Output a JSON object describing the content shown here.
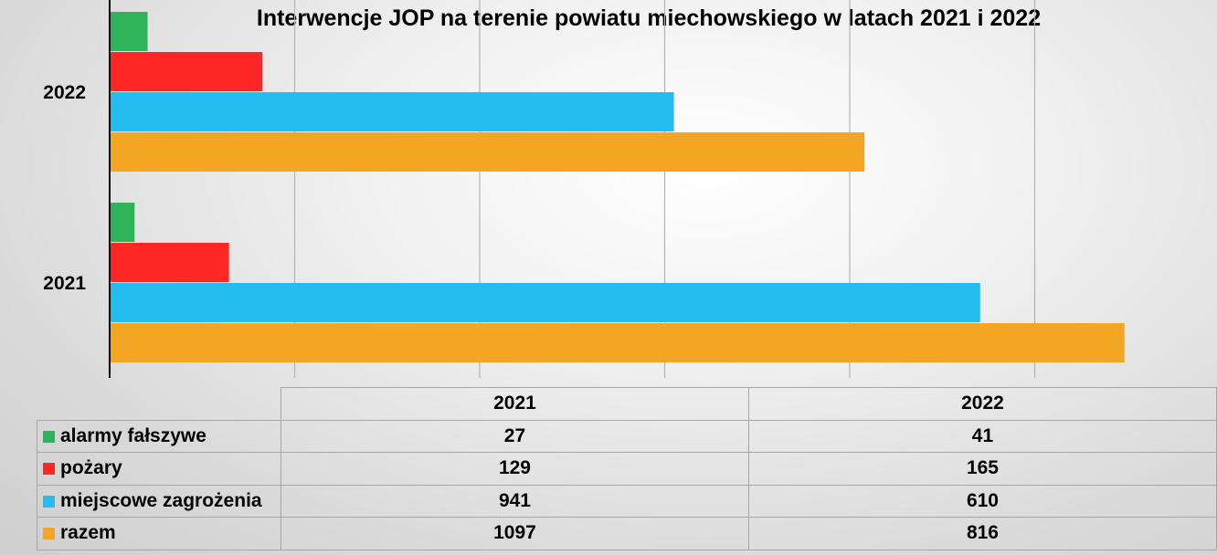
{
  "chart_data": {
    "type": "bar",
    "orientation": "horizontal",
    "title": "Interwencje JOP na terenie powiatu miechowskiego w latach 2021 i 2022",
    "categories": [
      "2022",
      "2021"
    ],
    "series": [
      {
        "name": "alarmy fałszywe",
        "color": "#2eb35b",
        "values": [
          41,
          27
        ]
      },
      {
        "name": "pożary",
        "color": "#ff2626",
        "values": [
          165,
          129
        ]
      },
      {
        "name": "miejscowe zagrożenia",
        "color": "#25bdf0",
        "values": [
          610,
          941
        ]
      },
      {
        "name": "razem",
        "color": "#f2a623",
        "values": [
          816,
          1097
        ]
      }
    ],
    "xlim": [
      0,
      1200
    ],
    "grid": true,
    "legend": "data-table-below",
    "table": {
      "columns": [
        "2021",
        "2022"
      ],
      "rows": [
        {
          "label": "alarmy fałszywe",
          "values": [
            "27",
            "41"
          ]
        },
        {
          "label": "pożary",
          "values": [
            "129",
            "165"
          ]
        },
        {
          "label": "miejscowe zagrożenia",
          "values": [
            "941",
            "610"
          ]
        },
        {
          "label": "razem",
          "values": [
            "1097",
            "816"
          ]
        }
      ]
    }
  }
}
